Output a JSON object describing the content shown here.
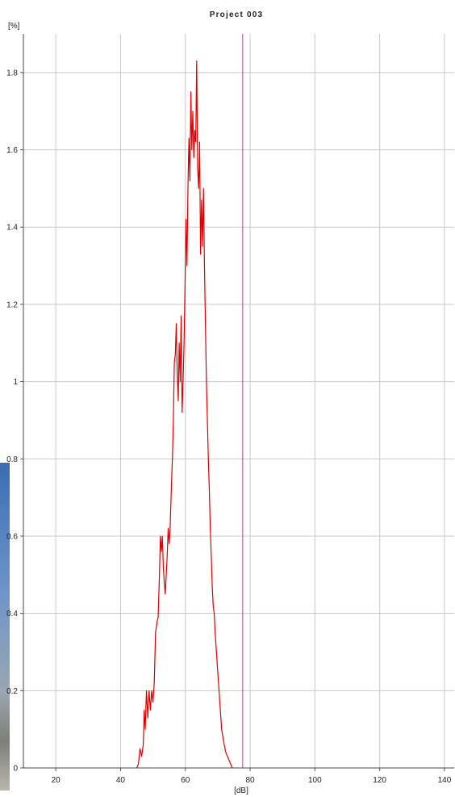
{
  "chart_data": {
    "type": "line",
    "title": "Project 003",
    "xlabel": "[dB]",
    "ylabel": "[%]",
    "xlim": [
      10,
      143
    ],
    "ylim": [
      0,
      1.9
    ],
    "x_ticks": [
      20,
      40,
      60,
      80,
      100,
      120,
      140
    ],
    "y_ticks": [
      0,
      0.2,
      0.4,
      0.6,
      0.8,
      1,
      1.2,
      1.4,
      1.6,
      1.8
    ],
    "y_tick_labels": [
      "0",
      "0.2",
      "0.4",
      "0.6",
      "0.8",
      "1",
      "1.2",
      "1.4",
      "1.6",
      "1.8"
    ],
    "grid": true,
    "marker_line": {
      "x": 77.7,
      "color": "#a04a8c"
    },
    "series": [
      {
        "color": "#e00000",
        "points": [
          [
            45.0,
            0.0
          ],
          [
            45.5,
            0.01
          ],
          [
            46.0,
            0.05
          ],
          [
            46.5,
            0.03
          ],
          [
            47.0,
            0.06
          ],
          [
            47.3,
            0.15
          ],
          [
            47.6,
            0.1
          ],
          [
            48.0,
            0.2
          ],
          [
            48.4,
            0.13
          ],
          [
            48.8,
            0.2
          ],
          [
            49.2,
            0.15
          ],
          [
            49.6,
            0.2
          ],
          [
            50.0,
            0.17
          ],
          [
            50.4,
            0.22
          ],
          [
            50.8,
            0.35
          ],
          [
            51.3,
            0.38
          ],
          [
            51.6,
            0.39
          ],
          [
            52.0,
            0.5
          ],
          [
            52.3,
            0.6
          ],
          [
            52.6,
            0.56
          ],
          [
            52.9,
            0.6
          ],
          [
            53.2,
            0.52
          ],
          [
            53.5,
            0.48
          ],
          [
            53.8,
            0.45
          ],
          [
            54.1,
            0.5
          ],
          [
            54.4,
            0.55
          ],
          [
            54.7,
            0.62
          ],
          [
            55.0,
            0.58
          ],
          [
            55.3,
            0.62
          ],
          [
            55.7,
            0.73
          ],
          [
            56.0,
            0.8
          ],
          [
            56.3,
            0.9
          ],
          [
            56.6,
            1.05
          ],
          [
            56.9,
            1.07
          ],
          [
            57.2,
            1.15
          ],
          [
            57.5,
            1.02
          ],
          [
            57.8,
            0.95
          ],
          [
            58.1,
            1.1
          ],
          [
            58.4,
            1.0
          ],
          [
            58.7,
            1.17
          ],
          [
            59.0,
            0.92
          ],
          [
            59.3,
            1.0
          ],
          [
            59.6,
            1.1
          ],
          [
            59.9,
            1.25
          ],
          [
            60.2,
            1.42
          ],
          [
            60.5,
            1.3
          ],
          [
            60.8,
            1.5
          ],
          [
            61.1,
            1.63
          ],
          [
            61.4,
            1.52
          ],
          [
            61.7,
            1.75
          ],
          [
            62.0,
            1.6
          ],
          [
            62.3,
            1.7
          ],
          [
            62.6,
            1.58
          ],
          [
            62.9,
            1.65
          ],
          [
            63.2,
            1.62
          ],
          [
            63.5,
            1.83
          ],
          [
            63.8,
            1.55
          ],
          [
            64.1,
            1.5
          ],
          [
            64.4,
            1.62
          ],
          [
            64.7,
            1.33
          ],
          [
            65.0,
            1.47
          ],
          [
            65.3,
            1.35
          ],
          [
            65.6,
            1.5
          ],
          [
            65.9,
            1.3
          ],
          [
            66.2,
            1.15
          ],
          [
            66.5,
            1.0
          ],
          [
            66.8,
            0.9
          ],
          [
            67.1,
            0.8
          ],
          [
            67.4,
            0.72
          ],
          [
            67.7,
            0.62
          ],
          [
            68.0,
            0.55
          ],
          [
            68.3,
            0.47
          ],
          [
            68.6,
            0.42
          ],
          [
            68.9,
            0.4
          ],
          [
            69.2,
            0.35
          ],
          [
            69.6,
            0.3
          ],
          [
            70.0,
            0.25
          ],
          [
            70.4,
            0.2
          ],
          [
            70.8,
            0.15
          ],
          [
            71.2,
            0.1
          ],
          [
            71.6,
            0.08
          ],
          [
            72.0,
            0.06
          ],
          [
            72.5,
            0.04
          ],
          [
            73.0,
            0.03
          ],
          [
            73.5,
            0.02
          ],
          [
            74.0,
            0.01
          ],
          [
            74.5,
            0.0
          ]
        ]
      }
    ]
  }
}
